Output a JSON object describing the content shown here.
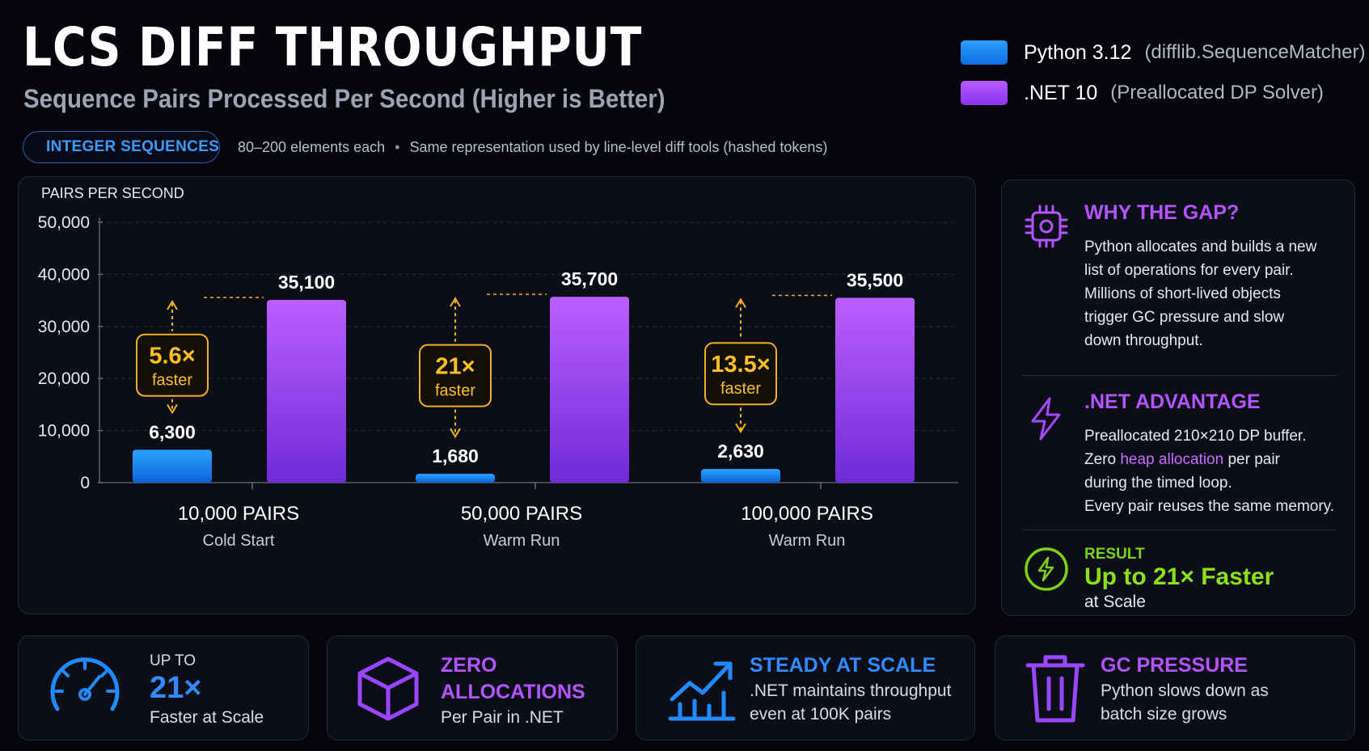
{
  "header": {
    "title": "LCS DIFF THROUGHPUT",
    "subtitle": "Sequence Pairs Processed Per Second (Higher is Better)"
  },
  "legend": [
    {
      "name": "Python 3.12",
      "desc": "(difflib.SequenceMatcher)",
      "color": "#1a86ff"
    },
    {
      "name": ".NET 10",
      "desc": "(Preallocated DP Solver)",
      "color": "#a44bff"
    }
  ],
  "badge": {
    "label": "INTEGER SEQUENCES",
    "icon": "globe-icon"
  },
  "info": {
    "elements": "80–200 elements each",
    "separator": "•",
    "note": "Same representation used by line-level diff tools (hashed tokens)"
  },
  "chart_data": {
    "type": "bar",
    "ylabel": "PAIRS PER SECOND",
    "ylim": [
      0,
      50000
    ],
    "yticks": [
      0,
      10000,
      20000,
      30000,
      40000,
      50000
    ],
    "ytick_labels": [
      "0",
      "10,000",
      "20,000",
      "30,000",
      "40,000",
      "50,000"
    ],
    "categories": [
      "10,000 PAIRS",
      "50,000 PAIRS",
      "100,000 PAIRS"
    ],
    "category_sublabels": [
      "Cold Start",
      "Warm Run",
      "Warm Run"
    ],
    "series": [
      {
        "name": "Python 3.12",
        "values": [
          6300,
          1680,
          2630
        ],
        "value_labels": [
          "6,300",
          "1,680",
          "2,630"
        ],
        "color": "#1a86ff"
      },
      {
        "name": ".NET 10",
        "values": [
          35100,
          35700,
          35500
        ],
        "value_labels": [
          "35,100",
          "35,700",
          "35,500"
        ],
        "color": "#a44bff"
      }
    ],
    "annotations": [
      {
        "value": "5.6×",
        "text": "faster"
      },
      {
        "value": "21×",
        "text": "faster"
      },
      {
        "value": "13.5×",
        "text": "faster"
      }
    ],
    "grid": true
  },
  "sidebar": {
    "why": {
      "title": "WHY THE GAP?",
      "icon": "cpu-chip-icon",
      "lines": [
        "Python allocates and builds a new",
        "list of operations for every pair.",
        "Millions of short-lived objects",
        "trigger GC pressure and slow",
        "down throughput."
      ]
    },
    "advantage": {
      "title": ".NET ADVANTAGE",
      "icon": "lightning-icon",
      "line1": "Preallocated 210×210 DP buffer.",
      "line2_pre": "Zero ",
      "line2_hl": "heap allocation",
      "line2_post": " per pair",
      "line3": "during the timed loop.",
      "line4": "Every pair reuses the same memory."
    },
    "result": {
      "label": "RESULT",
      "value": "Up to 21× Faster",
      "sub": "at Scale",
      "icon": "bolt-circle-icon"
    }
  },
  "cards": [
    {
      "icon": "speedometer-icon",
      "small": "UP TO",
      "big": "21×",
      "sub": "Faster at Scale"
    },
    {
      "icon": "cube-icon",
      "head1": "ZERO",
      "head2": "ALLOCATIONS",
      "sub": "Per Pair in .NET"
    },
    {
      "icon": "trend-chart-icon",
      "head": "STEADY AT SCALE",
      "line1": ".NET maintains throughput",
      "line2": "even at 100K pairs"
    },
    {
      "icon": "trash-icon",
      "head": "GC PRESSURE",
      "line1": "Python slows down as",
      "line2": "batch size grows"
    }
  ]
}
